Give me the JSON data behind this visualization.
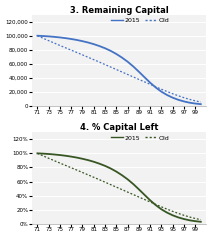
{
  "ages": [
    71,
    72,
    73,
    74,
    75,
    76,
    77,
    78,
    79,
    80,
    81,
    82,
    83,
    84,
    85,
    86,
    87,
    88,
    89,
    90,
    91,
    92,
    93,
    94,
    95,
    96,
    97,
    98,
    99,
    100
  ],
  "cap2015": [
    100000,
    99600,
    99100,
    98400,
    97600,
    96600,
    95400,
    94000,
    92300,
    90400,
    88100,
    85400,
    82300,
    78600,
    74200,
    69100,
    63300,
    56600,
    49100,
    41300,
    33600,
    26700,
    20800,
    16100,
    12300,
    9300,
    7000,
    5200,
    4000,
    3100
  ],
  "capOld": [
    100000,
    96500,
    93000,
    89600,
    86200,
    82900,
    79600,
    76300,
    72900,
    69500,
    66100,
    62700,
    59200,
    55700,
    52200,
    48700,
    45200,
    41700,
    38200,
    34700,
    31200,
    27700,
    24300,
    21000,
    17900,
    15000,
    12300,
    9900,
    7800,
    6100
  ],
  "pct2015": [
    100,
    99.6,
    99.1,
    98.4,
    97.6,
    96.6,
    95.4,
    94.0,
    92.3,
    90.4,
    88.1,
    85.4,
    82.3,
    78.6,
    74.2,
    69.1,
    63.3,
    56.6,
    49.1,
    41.3,
    33.6,
    26.7,
    20.8,
    16.1,
    12.3,
    9.3,
    7.0,
    5.2,
    4.0,
    3.1
  ],
  "pctOld": [
    100,
    96.5,
    93.0,
    89.6,
    86.2,
    82.9,
    79.6,
    76.3,
    72.9,
    69.5,
    66.1,
    62.7,
    59.2,
    55.7,
    52.2,
    48.7,
    45.2,
    41.7,
    38.2,
    34.7,
    31.2,
    27.7,
    24.3,
    21.0,
    17.9,
    15.0,
    12.3,
    9.9,
    7.8,
    6.1
  ],
  "color2015_top": "#4472C4",
  "colorOld_top": "#4472C4",
  "color2015_bot": "#375623",
  "colorOld_bot": "#375623",
  "title1": "3. Remaining Capital",
  "title2": "4. % Capital Left",
  "legend_2015": "2015",
  "legend_old": "Old",
  "bg_color": "#F2F2F2",
  "yticks_top": [
    0,
    20000,
    40000,
    60000,
    80000,
    100000,
    120000
  ],
  "yticks_bot": [
    0,
    0.2,
    0.4,
    0.6,
    0.8,
    1.0,
    1.2
  ],
  "xtick_labels": [
    "71",
    "73",
    "75",
    "77",
    "79",
    "81",
    "83",
    "85",
    "87",
    "89",
    "91",
    "93",
    "95",
    "97",
    "99"
  ],
  "xtick_vals": [
    71,
    73,
    75,
    77,
    79,
    81,
    83,
    85,
    87,
    89,
    91,
    93,
    95,
    97,
    99
  ]
}
